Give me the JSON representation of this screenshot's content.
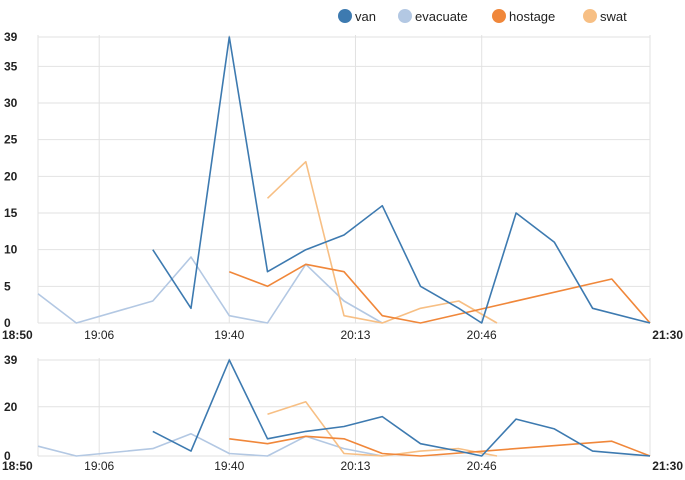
{
  "chart_data": {
    "type": "line",
    "title": "",
    "xlabel": "",
    "ylabel": "",
    "legend_position": "top-right",
    "grid": true,
    "x_domain": [
      "18:50",
      "21:30"
    ],
    "main": {
      "ylim": [
        0,
        39
      ],
      "y_ticks": [
        "0",
        "5",
        "10",
        "15",
        "20",
        "25",
        "30",
        "35",
        "39"
      ],
      "x_ticks": [
        "18:50",
        "19:06",
        "19:40",
        "20:13",
        "20:46",
        "21:30"
      ]
    },
    "overview": {
      "ylim": [
        0,
        39
      ],
      "y_ticks": [
        "0",
        "20",
        "39"
      ],
      "x_ticks": [
        "18:50",
        "19:06",
        "19:40",
        "20:13",
        "20:46",
        "21:30"
      ]
    },
    "series": [
      {
        "name": "van",
        "color": "#3d7ab0",
        "points": [
          [
            "19:20",
            10
          ],
          [
            "19:30",
            2
          ],
          [
            "19:40",
            39
          ],
          [
            "19:50",
            7
          ],
          [
            "20:00",
            10
          ],
          [
            "20:10",
            12
          ],
          [
            "20:20",
            16
          ],
          [
            "20:30",
            5
          ],
          [
            "20:40",
            2
          ],
          [
            "20:46",
            0
          ],
          [
            "20:55",
            15
          ],
          [
            "21:05",
            11
          ],
          [
            "21:15",
            2
          ],
          [
            "21:30",
            0
          ]
        ]
      },
      {
        "name": "evacuate",
        "color": "#b3c8e3",
        "points": [
          [
            "18:50",
            4
          ],
          [
            "19:00",
            0
          ],
          [
            "19:20",
            3
          ],
          [
            "19:30",
            9
          ],
          [
            "19:40",
            1
          ],
          [
            "19:50",
            0
          ],
          [
            "20:00",
            8
          ],
          [
            "20:10",
            3
          ],
          [
            "20:20",
            0
          ]
        ]
      },
      {
        "name": "hostage",
        "color": "#f0873a",
        "points": [
          [
            "19:40",
            7
          ],
          [
            "19:50",
            5
          ],
          [
            "20:00",
            8
          ],
          [
            "20:10",
            7
          ],
          [
            "20:20",
            1
          ],
          [
            "20:30",
            0
          ],
          [
            "21:20",
            6
          ],
          [
            "21:30",
            0
          ]
        ]
      },
      {
        "name": "swat",
        "color": "#f7bf84",
        "points": [
          [
            "19:50",
            17
          ],
          [
            "20:00",
            22
          ],
          [
            "20:10",
            1
          ],
          [
            "20:20",
            0
          ],
          [
            "20:30",
            2
          ],
          [
            "20:40",
            3
          ],
          [
            "20:50",
            0
          ]
        ]
      }
    ]
  }
}
